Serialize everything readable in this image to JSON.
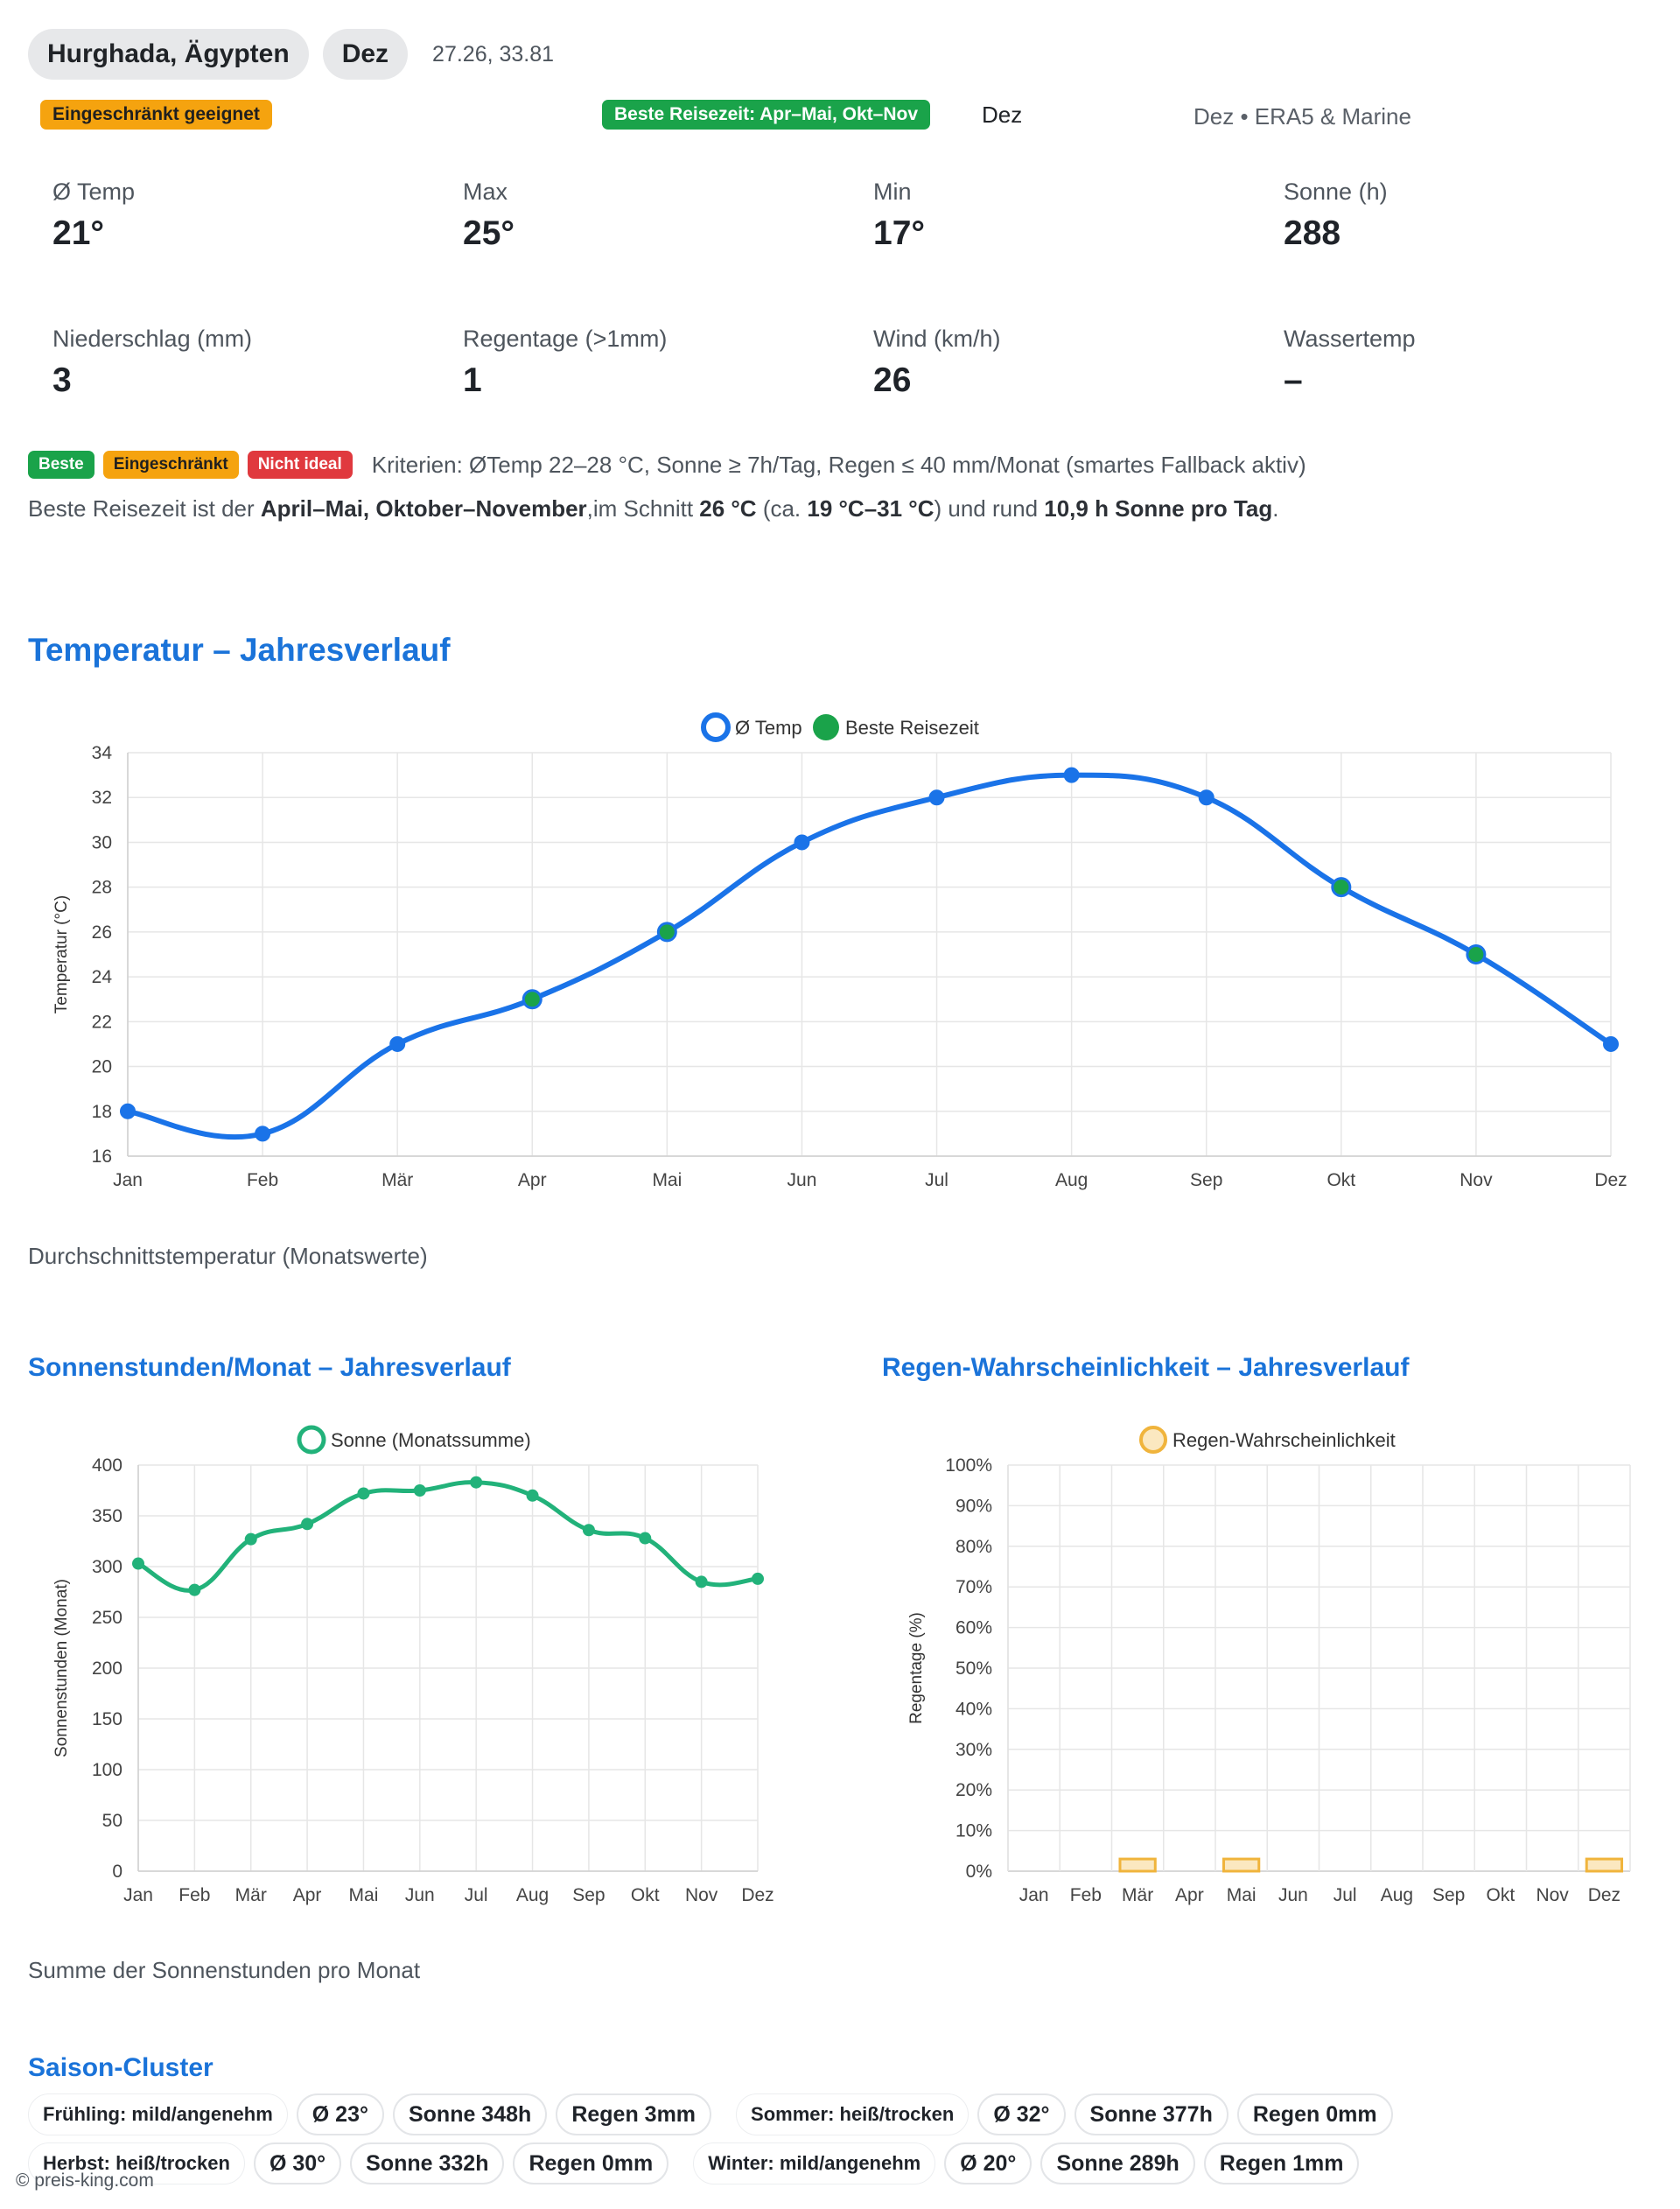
{
  "header": {
    "location": "Hurghada, Ägypten",
    "month_pill": "Dez",
    "coords": "27.26, 33.81",
    "suitability_badge": "Eingeschränkt geeignet",
    "best_time_badge": "Beste Reisezeit: Apr–Mai, Okt–Nov",
    "selected_month": "Dez",
    "source": "Dez • ERA5 & Marine"
  },
  "stats": [
    {
      "label": "Ø Temp",
      "value": "21°"
    },
    {
      "label": "Max",
      "value": "25°"
    },
    {
      "label": "Min",
      "value": "17°"
    },
    {
      "label": "Sonne (h)",
      "value": "288"
    },
    {
      "label": "Niederschlag (mm)",
      "value": "3"
    },
    {
      "label": "Regentage (>1mm)",
      "value": "1"
    },
    {
      "label": "Wind (km/h)",
      "value": "26"
    },
    {
      "label": "Wassertemp",
      "value": "–"
    }
  ],
  "legend": {
    "beste": "Beste",
    "eingeschraenkt": "Eingeschränkt",
    "nicht_ideal": "Nicht ideal",
    "criteria": "Kriterien: ØTemp 22–28 °C, Sonne ≥ 7h/Tag, Regen ≤ 40 mm/Monat (smartes Fallback aktiv)"
  },
  "summary": {
    "prefix": "Beste Reisezeit ist der ",
    "months": "April–Mai, Oktober–November",
    "mid": ",im Schnitt ",
    "avg": "26 °C",
    "range_prefix": " (ca. ",
    "range": "19 °C–31 °C",
    "range_suffix": ") und rund ",
    "sun": "10,9 h Sonne pro Tag",
    "end": "."
  },
  "sections": {
    "temp_title": "Temperatur – Jahresverlauf",
    "temp_caption": "Durchschnittstemperatur (Monatswerte)",
    "sun_title": "Sonnenstunden/Monat – Jahresverlauf",
    "sun_caption": "Summe der Sonnenstunden pro Monat",
    "rain_title": "Regen-Wahrscheinlichkeit – Jahresverlauf",
    "cluster_title": "Saison-Cluster"
  },
  "colors": {
    "temp_line": "#1a73e8",
    "best": "#1aa34a",
    "sun_line": "#22b27a",
    "rain": "#f0b43c",
    "grid": "#e6e6e6"
  },
  "chart_data": [
    {
      "type": "line",
      "title": "Temperatur – Jahresverlauf",
      "categories": [
        "Jan",
        "Feb",
        "Mär",
        "Apr",
        "Mai",
        "Jun",
        "Jul",
        "Aug",
        "Sep",
        "Okt",
        "Nov",
        "Dez"
      ],
      "series": [
        {
          "name": "Ø Temp",
          "values": [
            18,
            17,
            21,
            23,
            26,
            30,
            32,
            33,
            32,
            28,
            25,
            21
          ]
        }
      ],
      "best_months": [
        "Apr",
        "Mai",
        "Okt",
        "Nov"
      ],
      "best_label": "Beste Reisezeit",
      "ylabel": "Temperatur (°C)",
      "xlabel": "",
      "ylim": [
        16,
        34
      ],
      "yticks": [
        16,
        18,
        20,
        22,
        24,
        26,
        28,
        30,
        32,
        34
      ],
      "legend": "top-center"
    },
    {
      "type": "line",
      "title": "Sonnenstunden/Monat – Jahresverlauf",
      "categories": [
        "Jan",
        "Feb",
        "Mär",
        "Apr",
        "Mai",
        "Jun",
        "Jul",
        "Aug",
        "Sep",
        "Okt",
        "Nov",
        "Dez"
      ],
      "series": [
        {
          "name": "Sonne (Monatssumme)",
          "values": [
            303,
            277,
            327,
            342,
            372,
            375,
            383,
            370,
            336,
            328,
            285,
            288
          ]
        }
      ],
      "ylabel": "Sonnenstunden (Monat)",
      "xlabel": "",
      "ylim": [
        0,
        400
      ],
      "yticks": [
        0,
        50,
        100,
        150,
        200,
        250,
        300,
        350,
        400
      ],
      "legend": "top-center"
    },
    {
      "type": "bar",
      "title": "Regen-Wahrscheinlichkeit – Jahresverlauf",
      "categories": [
        "Jan",
        "Feb",
        "Mär",
        "Apr",
        "Mai",
        "Jun",
        "Jul",
        "Aug",
        "Sep",
        "Okt",
        "Nov",
        "Dez"
      ],
      "series": [
        {
          "name": "Regen-Wahrscheinlichkeit",
          "values": [
            0,
            0,
            3,
            0,
            3,
            0,
            0,
            0,
            0,
            0,
            0,
            3
          ]
        }
      ],
      "ylabel": "Regentage (%)",
      "xlabel": "",
      "ylim": [
        0,
        100
      ],
      "yticks": [
        "0%",
        "10%",
        "20%",
        "30%",
        "40%",
        "50%",
        "60%",
        "70%",
        "80%",
        "90%",
        "100%"
      ],
      "legend": "top-center"
    }
  ],
  "clusters": [
    [
      {
        "label": "Frühling: mild/angenehm",
        "temp": "Ø 23°",
        "sun": "Sonne 348h",
        "rain": "Regen 3mm"
      },
      {
        "label": "Sommer: heiß/trocken",
        "temp": "Ø 32°",
        "sun": "Sonne 377h",
        "rain": "Regen 0mm"
      }
    ],
    [
      {
        "label": "Herbst: heiß/trocken",
        "temp": "Ø 30°",
        "sun": "Sonne 332h",
        "rain": "Regen 0mm"
      },
      {
        "label": "Winter: mild/angenehm",
        "temp": "Ø 20°",
        "sun": "Sonne 289h",
        "rain": "Regen 1mm"
      }
    ]
  ],
  "footer": {
    "copyright": "© preis-king.com"
  }
}
